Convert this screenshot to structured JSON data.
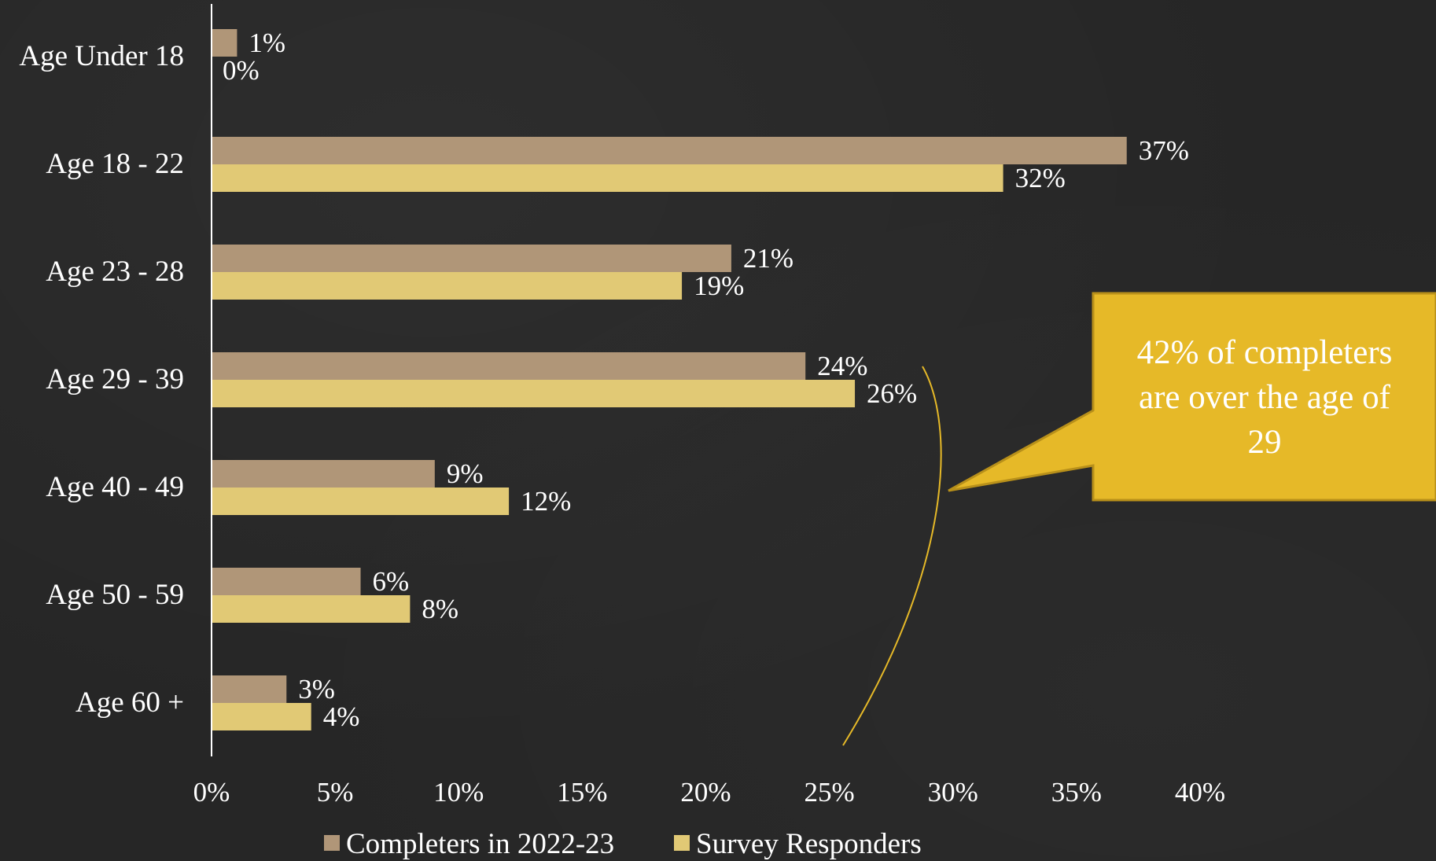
{
  "chart_data": {
    "type": "bar",
    "orientation": "horizontal",
    "categories": [
      "Age Under 18",
      "Age 18 - 22",
      "Age 23 - 28",
      "Age 29 - 39",
      "Age 40 - 49",
      "Age 50 - 59",
      "Age 60 +"
    ],
    "series": [
      {
        "name": "Completers in 2022-23",
        "color": "#b09678",
        "values": [
          1,
          37,
          21,
          24,
          9,
          6,
          3
        ],
        "labels": [
          "1%",
          "37%",
          "21%",
          "24%",
          "9%",
          "6%",
          "3%"
        ]
      },
      {
        "name": "Survey Responders",
        "color": "#e1c975",
        "values": [
          0,
          32,
          19,
          26,
          12,
          8,
          4
        ],
        "labels": [
          "0%",
          "32%",
          "19%",
          "26%",
          "12%",
          "8%",
          "4%"
        ]
      }
    ],
    "xlim": [
      0,
      40
    ],
    "x_ticks": [
      "0%",
      "5%",
      "10%",
      "15%",
      "20%",
      "25%",
      "30%",
      "35%",
      "40%"
    ],
    "grid": false,
    "legend_position": "bottom",
    "annotation": {
      "text_lines": [
        "42% of completers",
        "are over the age of",
        "29"
      ],
      "background_color": "#e6b928",
      "border_color": "#b8901a",
      "bracket_color": "#e6b928"
    }
  }
}
